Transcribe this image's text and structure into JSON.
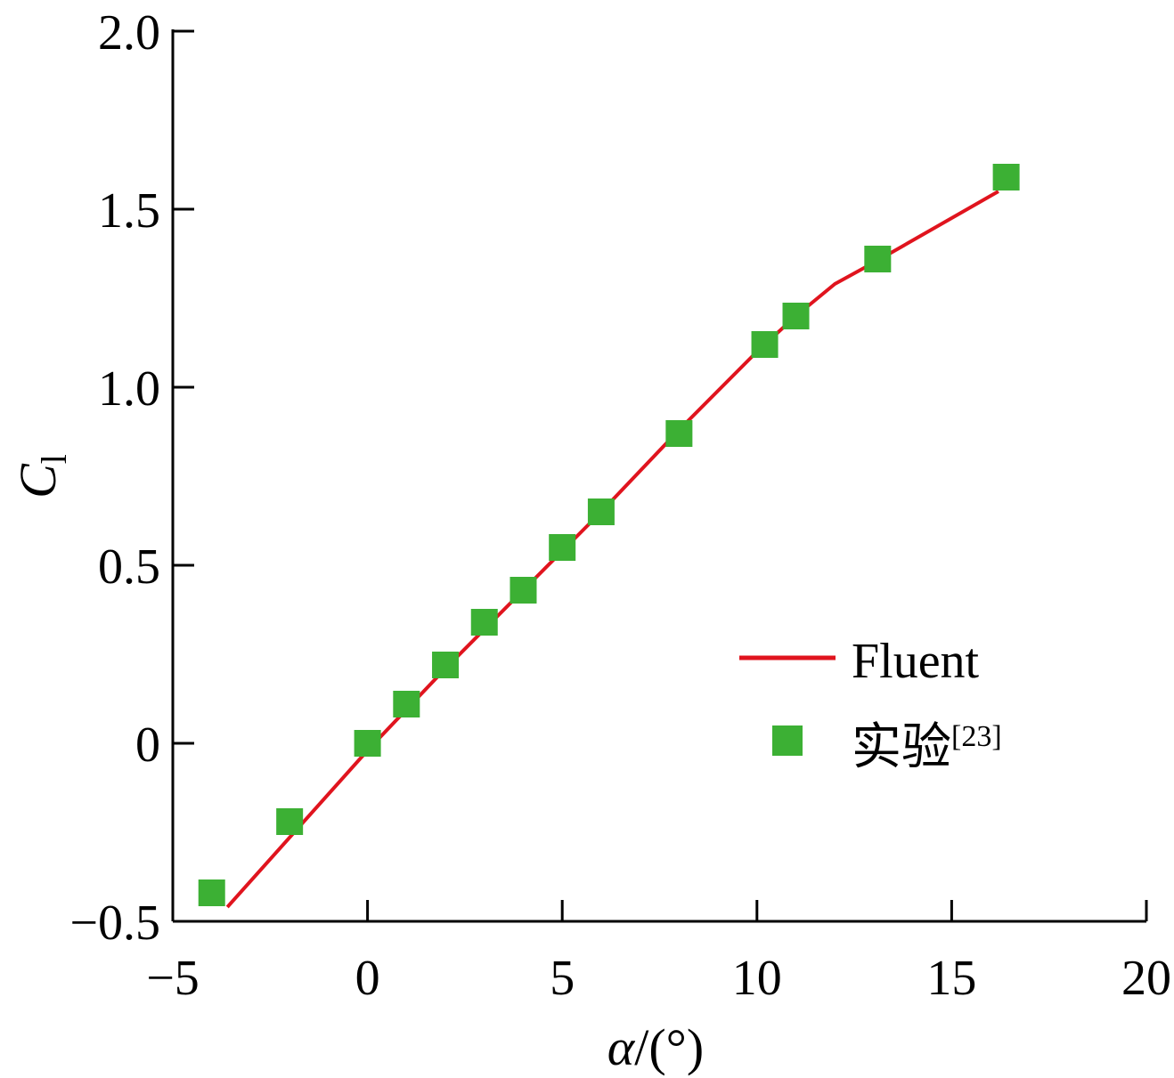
{
  "chart_data": {
    "type": "line",
    "xlabel": {
      "main": "α",
      "unit": "/(°)"
    },
    "ylabel": {
      "main": "C",
      "sub": "l"
    },
    "xlim": [
      -5,
      20
    ],
    "ylim": [
      -0.5,
      2.0
    ],
    "xticks": [
      -5,
      0,
      5,
      10,
      15,
      20
    ],
    "xtick_labels": [
      "−5",
      "0",
      "5",
      "10",
      "15",
      "20"
    ],
    "yticks": [
      -0.5,
      0,
      0.5,
      1.0,
      1.5,
      2.0
    ],
    "ytick_labels": [
      "−0.5",
      "0",
      "0.5",
      "1.0",
      "1.5",
      "2.0"
    ],
    "grid": false,
    "legend_position": "lower-right",
    "series": [
      {
        "name": "Fluent",
        "kind": "line",
        "color": "#e0141e",
        "x": [
          -3.6,
          0,
          2,
          4,
          6,
          8,
          10,
          11,
          12,
          13,
          16.2
        ],
        "y": [
          -0.46,
          -0.02,
          0.21,
          0.43,
          0.65,
          0.88,
          1.1,
          1.2,
          1.29,
          1.35,
          1.55
        ]
      },
      {
        "name": "实验",
        "name_sup": "[23]",
        "kind": "scatter",
        "marker": "square",
        "color": "#3cb034",
        "x": [
          -4,
          -2,
          0,
          1,
          2,
          3,
          4,
          5,
          6,
          8,
          10.2,
          11,
          13.1,
          16.4
        ],
        "y": [
          -0.42,
          -0.22,
          0,
          0.11,
          0.22,
          0.34,
          0.43,
          0.55,
          0.65,
          0.87,
          1.12,
          1.2,
          1.36,
          1.59
        ]
      }
    ]
  }
}
